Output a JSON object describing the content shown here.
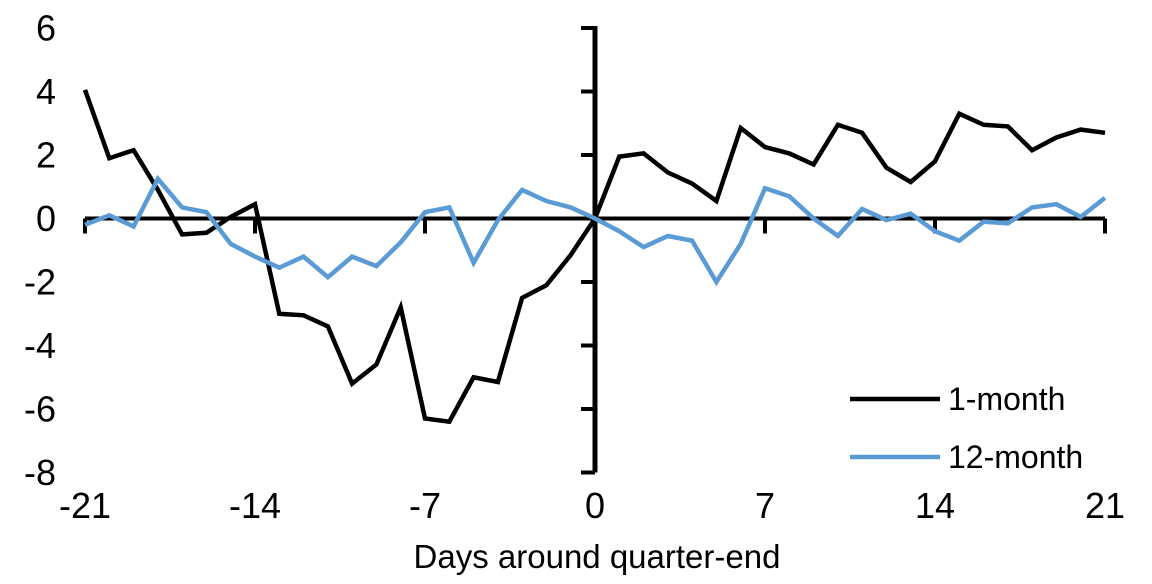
{
  "chart_data": {
    "type": "line",
    "xlabel": "Days around quarter-end",
    "x": [
      -21,
      -20,
      -19,
      -18,
      -17,
      -16,
      -15,
      -14,
      -13,
      -12,
      -11,
      -10,
      -9,
      -8,
      -7,
      -6,
      -5,
      -4,
      -3,
      -2,
      -1,
      0,
      1,
      2,
      3,
      4,
      5,
      6,
      7,
      8,
      9,
      10,
      11,
      12,
      13,
      14,
      15,
      16,
      17,
      18,
      19,
      20,
      21
    ],
    "series": [
      {
        "name": "1-month",
        "color": "#000000",
        "values": [
          4.05,
          1.9,
          2.15,
          0.9,
          -0.5,
          -0.45,
          0.05,
          0.45,
          -3.0,
          -3.05,
          -3.4,
          -5.2,
          -4.6,
          -2.8,
          -6.3,
          -6.4,
          -5.0,
          -5.15,
          -2.5,
          -2.1,
          -1.15,
          0,
          1.95,
          2.05,
          1.45,
          1.1,
          0.55,
          2.85,
          2.25,
          2.05,
          1.7,
          2.95,
          2.7,
          1.6,
          1.15,
          1.8,
          3.3,
          2.95,
          2.9,
          2.15,
          2.55,
          2.8,
          2.7
        ]
      },
      {
        "name": "12-month",
        "color": "#5B9BD5",
        "values": [
          -0.2,
          0.1,
          -0.25,
          1.25,
          0.35,
          0.2,
          -0.8,
          -1.2,
          -1.55,
          -1.2,
          -1.85,
          -1.2,
          -1.5,
          -0.75,
          0.2,
          0.35,
          -1.4,
          -0.05,
          0.9,
          0.55,
          0.35,
          0,
          -0.4,
          -0.9,
          -0.55,
          -0.7,
          -2.0,
          -0.8,
          0.95,
          0.7,
          0.0,
          -0.55,
          0.3,
          -0.05,
          0.15,
          -0.4,
          -0.7,
          -0.1,
          -0.15,
          0.35,
          0.45,
          0.05,
          0.65
        ]
      }
    ],
    "xticks": [
      -21,
      -14,
      -7,
      0,
      7,
      14,
      21
    ],
    "yticks": [
      6,
      4,
      2,
      0,
      -2,
      -4,
      -6,
      -8
    ],
    "xlim": [
      -21,
      21
    ],
    "ylim": [
      -8,
      6
    ],
    "grid": false,
    "legend_position": "inside-bottom-right"
  }
}
